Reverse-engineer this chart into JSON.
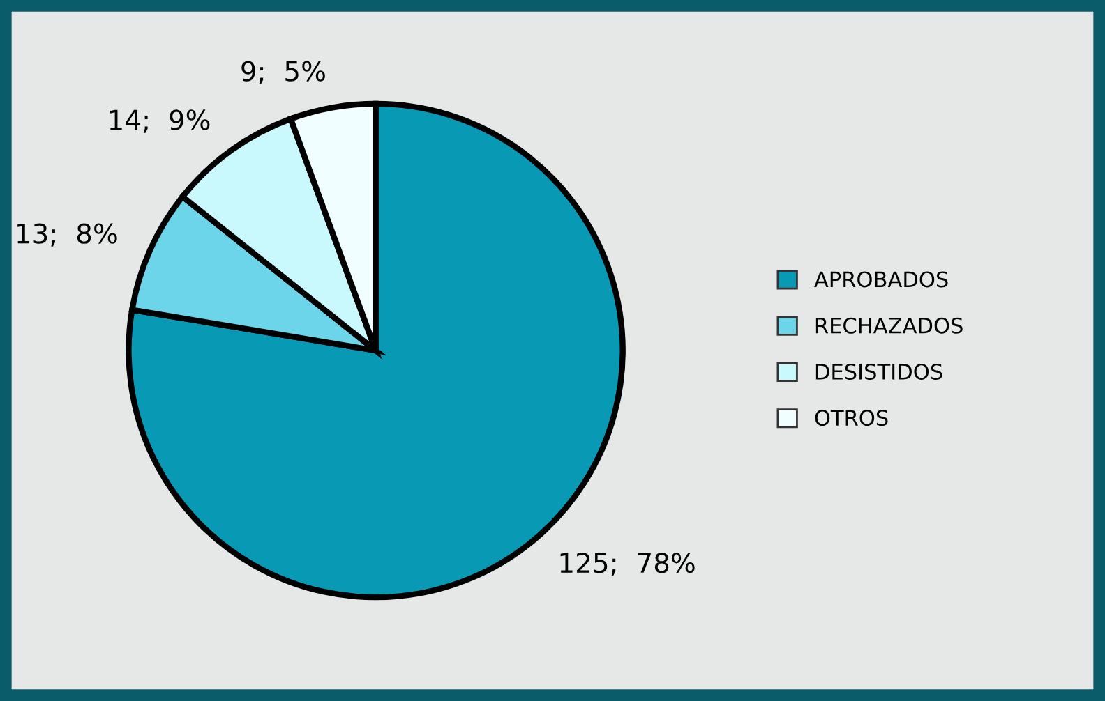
{
  "chart_data": {
    "type": "pie",
    "categories": [
      "APROBADOS",
      "RECHAZADOS",
      "DESISTIDOS",
      "OTROS"
    ],
    "values": [
      125,
      13,
      14,
      9
    ],
    "colors": [
      "#0899b5",
      "#6dd5ea",
      "#c9f8fd",
      "#f0feff"
    ],
    "value_labels": [
      "125;  78%",
      "13;  8%",
      "14;  9%",
      "9;  5%"
    ],
    "legend": "right"
  }
}
